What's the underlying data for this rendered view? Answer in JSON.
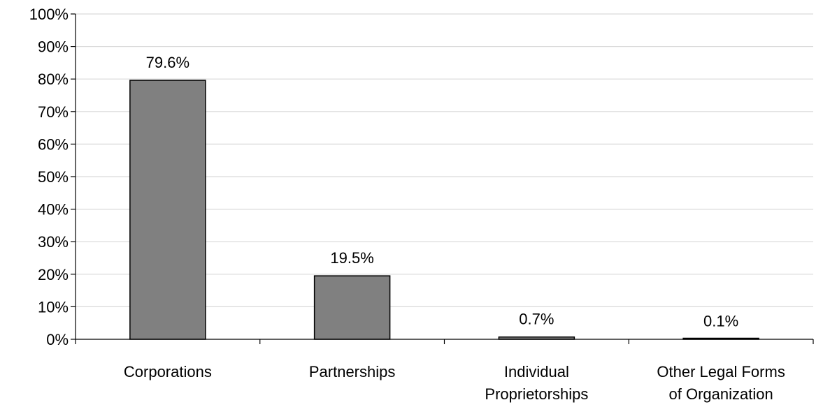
{
  "chart_data": {
    "type": "bar",
    "title": "",
    "xlabel": "",
    "ylabel": "",
    "categories": [
      [
        "Corporations"
      ],
      [
        "Partnerships"
      ],
      [
        "Individual",
        "Proprietorships"
      ],
      [
        "Other Legal Forms",
        "of Organization"
      ]
    ],
    "values": [
      79.6,
      19.5,
      0.7,
      0.1
    ],
    "data_labels": [
      "79.6%",
      "19.5%",
      "0.7%",
      "0.1%"
    ],
    "ylim": [
      0,
      100
    ],
    "y_ticks": [
      0,
      10,
      20,
      30,
      40,
      50,
      60,
      70,
      80,
      90,
      100
    ],
    "y_tick_labels": [
      "0%",
      "10%",
      "20%",
      "30%",
      "40%",
      "50%",
      "60%",
      "70%",
      "80%",
      "90%",
      "100%"
    ],
    "grid": true,
    "legend": "none",
    "colors": {
      "bar_fill": "#808080",
      "bar_stroke": "#000000",
      "grid": "#d9d9d9",
      "axis": "#000000"
    }
  }
}
